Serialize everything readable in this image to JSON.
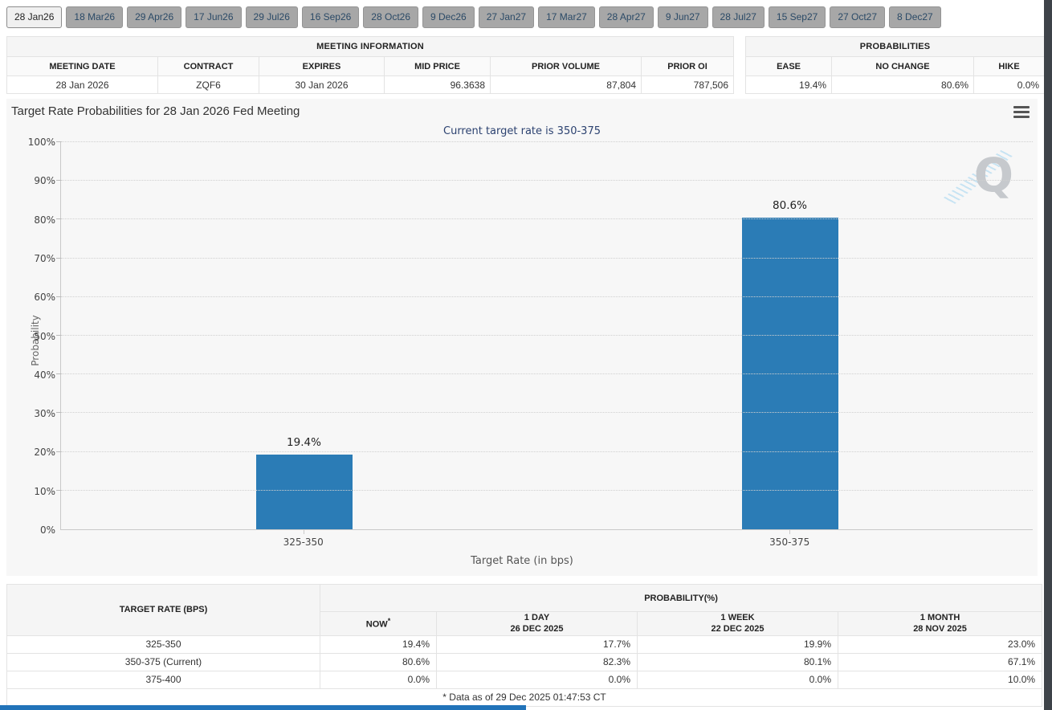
{
  "tabs": [
    {
      "label": "28 Jan26",
      "active": true
    },
    {
      "label": "18 Mar26",
      "active": false
    },
    {
      "label": "29 Apr26",
      "active": false
    },
    {
      "label": "17 Jun26",
      "active": false
    },
    {
      "label": "29 Jul26",
      "active": false
    },
    {
      "label": "16 Sep26",
      "active": false
    },
    {
      "label": "28 Oct26",
      "active": false
    },
    {
      "label": "9 Dec26",
      "active": false
    },
    {
      "label": "27 Jan27",
      "active": false
    },
    {
      "label": "17 Mar27",
      "active": false
    },
    {
      "label": "28 Apr27",
      "active": false
    },
    {
      "label": "9 Jun27",
      "active": false
    },
    {
      "label": "28 Jul27",
      "active": false
    },
    {
      "label": "15 Sep27",
      "active": false
    },
    {
      "label": "27 Oct27",
      "active": false
    },
    {
      "label": "8 Dec27",
      "active": false
    }
  ],
  "meeting_info": {
    "title": "MEETING INFORMATION",
    "columns": [
      "MEETING DATE",
      "CONTRACT",
      "EXPIRES",
      "MID PRICE",
      "PRIOR VOLUME",
      "PRIOR OI"
    ],
    "values": [
      "28 Jan 2026",
      "ZQF6",
      "30 Jan 2026",
      "96.3638",
      "87,804",
      "787,506"
    ]
  },
  "probabilities": {
    "title": "PROBABILITIES",
    "columns": [
      "EASE",
      "NO CHANGE",
      "HIKE"
    ],
    "values": [
      "19.4%",
      "80.6%",
      "0.0%"
    ]
  },
  "chart_data": {
    "type": "bar",
    "title": "Target Rate Probabilities for 28 Jan 2026 Fed Meeting",
    "subtitle": "Current target rate is 350-375",
    "categories": [
      "325-350",
      "350-375"
    ],
    "values": [
      19.4,
      80.6
    ],
    "labels": [
      "19.4%",
      "80.6%"
    ],
    "xlabel": "Target Rate (in bps)",
    "ylabel": "Probability",
    "ylim": [
      0,
      100
    ],
    "ytick_step": 10,
    "grid": "dotted-horizontal",
    "legend": "none"
  },
  "history_table": {
    "corner_header": "TARGET RATE (BPS)",
    "group_header": "PROBABILITY(%)",
    "now_label": "NOW",
    "now_asterisk": "*",
    "columns": [
      {
        "line1": "1 DAY",
        "line2": "26 DEC 2025"
      },
      {
        "line1": "1 WEEK",
        "line2": "22 DEC 2025"
      },
      {
        "line1": "1 MONTH",
        "line2": "28 NOV 2025"
      }
    ],
    "rows": [
      {
        "rate": "325-350",
        "now": "19.4%",
        "day": "17.7%",
        "week": "19.9%",
        "month": "23.0%"
      },
      {
        "rate": "350-375 (Current)",
        "now": "80.6%",
        "day": "82.3%",
        "week": "80.1%",
        "month": "67.1%"
      },
      {
        "rate": "375-400",
        "now": "0.0%",
        "day": "0.0%",
        "week": "0.0%",
        "month": "10.0%"
      }
    ],
    "footnote": "* Data as of 29 Dec 2025 01:47:53 CT"
  },
  "watermark_letter": "Q",
  "colors": {
    "bar": "#2b7cb6",
    "subtitle": "#2c4270",
    "now_column_bg": "#f7f7d9",
    "tab_inactive_bg": "#a7a7a7",
    "tab_inactive_text": "#2b4a67",
    "tab_active_bg": "#f0f0f0",
    "bottom_strip": "#2173b9",
    "right_rail": "#3e4349"
  }
}
